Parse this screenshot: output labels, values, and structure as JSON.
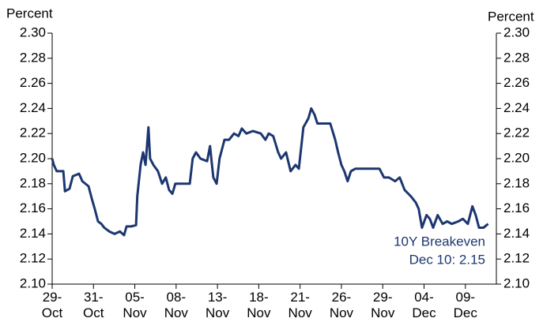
{
  "chart_data": {
    "type": "line",
    "y_label": "Percent",
    "y2_label": "Percent",
    "annotations": [
      "10Y Breakeven",
      "Dec 10: 2.15"
    ],
    "xlim": [
      0,
      10.75
    ],
    "xticks": [
      {
        "value": 0,
        "label": "29-\nOct"
      },
      {
        "value": 1,
        "label": "31-\nOct"
      },
      {
        "value": 2,
        "label": "05-\nNov"
      },
      {
        "value": 3,
        "label": "08-\nNov"
      },
      {
        "value": 4,
        "label": "13-\nNov"
      },
      {
        "value": 5,
        "label": "18-\nNov"
      },
      {
        "value": 6,
        "label": "21-\nNov"
      },
      {
        "value": 7,
        "label": "26-\nNov"
      },
      {
        "value": 8,
        "label": "29-\nNov"
      },
      {
        "value": 9,
        "label": "04-\nDec"
      },
      {
        "value": 10,
        "label": "09-\nDec"
      }
    ],
    "ylim": [
      2.1,
      2.3
    ],
    "yticks": [
      {
        "value": 2.1,
        "label": "2.10"
      },
      2.12,
      2.14,
      2.16,
      2.18,
      {
        "value": 2.2,
        "label": "2.20"
      },
      2.22,
      2.24,
      2.26,
      2.28,
      {
        "value": 2.3,
        "label": "2.30"
      }
    ],
    "y2lim": [
      2.1,
      2.3
    ],
    "y2ticks": [
      {
        "value": 2.1,
        "label": "2.10"
      },
      2.12,
      2.14,
      2.16,
      2.18,
      {
        "value": 2.2,
        "label": "2.20"
      },
      2.22,
      2.24,
      2.26,
      2.28,
      {
        "value": 2.3,
        "label": "2.30"
      }
    ],
    "series": [
      {
        "color": "#1c3770",
        "x": [
          0,
          0.04,
          0.11,
          0.27,
          0.31,
          0.42,
          0.5,
          0.65,
          0.73,
          0.88,
          0.96,
          1.03,
          1.11,
          1.19,
          1.26,
          1.38,
          1.51,
          1.64,
          1.74,
          1.8,
          1.91,
          2.03,
          2.06,
          2.14,
          2.2,
          2.26,
          2.33,
          2.37,
          2.45,
          2.56,
          2.66,
          2.75,
          2.83,
          2.91,
          2.98,
          3.14,
          3.33,
          3.4,
          3.48,
          3.59,
          3.75,
          3.82,
          3.9,
          3.98,
          4.05,
          4.17,
          4.28,
          4.4,
          4.51,
          4.59,
          4.7,
          4.86,
          5.05,
          5.16,
          5.24,
          5.35,
          5.47,
          5.54,
          5.66,
          5.77,
          5.89,
          5.97,
          6.08,
          6.2,
          6.27,
          6.35,
          6.42,
          6.58,
          6.73,
          6.85,
          6.92,
          7.0,
          7.07,
          7.15,
          7.23,
          7.34,
          7.53,
          7.72,
          7.92,
          8.03,
          8.15,
          8.3,
          8.41,
          8.53,
          8.68,
          8.8,
          8.87,
          8.95,
          9.06,
          9.14,
          9.22,
          9.33,
          9.45,
          9.56,
          9.67,
          9.83,
          9.94,
          10.06,
          10.17,
          10.25,
          10.33,
          10.44,
          10.55
        ],
        "values": [
          2.2,
          2.195,
          2.19,
          2.19,
          2.174,
          2.176,
          2.186,
          2.188,
          2.182,
          2.178,
          2.168,
          2.16,
          2.15,
          2.148,
          2.145,
          2.142,
          2.14,
          2.142,
          2.139,
          2.146,
          2.146,
          2.147,
          2.17,
          2.195,
          2.205,
          2.195,
          2.225,
          2.2,
          2.195,
          2.19,
          2.18,
          2.185,
          2.175,
          2.172,
          2.18,
          2.18,
          2.18,
          2.2,
          2.205,
          2.2,
          2.198,
          2.21,
          2.185,
          2.18,
          2.2,
          2.215,
          2.215,
          2.22,
          2.218,
          2.224,
          2.22,
          2.222,
          2.22,
          2.215,
          2.22,
          2.218,
          2.205,
          2.2,
          2.205,
          2.19,
          2.195,
          2.192,
          2.225,
          2.232,
          2.24,
          2.235,
          2.228,
          2.228,
          2.228,
          2.215,
          2.205,
          2.195,
          2.19,
          2.182,
          2.19,
          2.192,
          2.192,
          2.192,
          2.192,
          2.185,
          2.185,
          2.182,
          2.185,
          2.175,
          2.17,
          2.165,
          2.16,
          2.145,
          2.155,
          2.152,
          2.145,
          2.155,
          2.148,
          2.15,
          2.148,
          2.15,
          2.152,
          2.148,
          2.162,
          2.155,
          2.145,
          2.145,
          2.148
        ]
      }
    ]
  }
}
